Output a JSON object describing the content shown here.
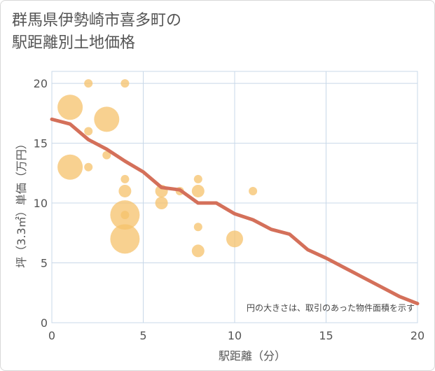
{
  "title": "群馬県伊勢崎市喜多町の\n駅距離別土地価格",
  "colors": {
    "bubble": "#f5c26b",
    "line": "#d4705a",
    "grid": "#c8d8e8",
    "axis_text": "#555555"
  },
  "chart_data": {
    "type": "scatter",
    "title": "群馬県伊勢崎市喜多町の駅距離別土地価格",
    "xlabel": "駅距離（分）",
    "ylabel": "坪（3.3㎡）単価（万円）",
    "xlim": [
      0,
      20
    ],
    "ylim": [
      0,
      21
    ],
    "xticks": [
      0,
      5,
      10,
      15,
      20
    ],
    "yticks": [
      0,
      5,
      10,
      15,
      20
    ],
    "note": "円の大きさは、取引のあった物件面積を示す",
    "points": [
      {
        "x": 1,
        "y": 18,
        "size": 3
      },
      {
        "x": 1,
        "y": 13,
        "size": 3
      },
      {
        "x": 2,
        "y": 20,
        "size": 1
      },
      {
        "x": 2,
        "y": 16,
        "size": 1
      },
      {
        "x": 2,
        "y": 13,
        "size": 1
      },
      {
        "x": 3,
        "y": 17,
        "size": 3
      },
      {
        "x": 3,
        "y": 14,
        "size": 1
      },
      {
        "x": 4,
        "y": 20,
        "size": 1
      },
      {
        "x": 4,
        "y": 12,
        "size": 1
      },
      {
        "x": 4,
        "y": 11,
        "size": 1.5
      },
      {
        "x": 4,
        "y": 9,
        "size": 3.5
      },
      {
        "x": 4,
        "y": 9,
        "size": 1
      },
      {
        "x": 4,
        "y": 7,
        "size": 3.5
      },
      {
        "x": 6,
        "y": 11,
        "size": 1.5
      },
      {
        "x": 6,
        "y": 10,
        "size": 1.5
      },
      {
        "x": 7,
        "y": 11,
        "size": 1
      },
      {
        "x": 8,
        "y": 12,
        "size": 1
      },
      {
        "x": 8,
        "y": 11,
        "size": 1.5
      },
      {
        "x": 8,
        "y": 8,
        "size": 1
      },
      {
        "x": 8,
        "y": 6,
        "size": 1.5
      },
      {
        "x": 10,
        "y": 7,
        "size": 2
      },
      {
        "x": 11,
        "y": 11,
        "size": 1
      }
    ],
    "trend_line": {
      "x": [
        0,
        1,
        2,
        3,
        4,
        5,
        6,
        7,
        8,
        9,
        10,
        11,
        12,
        13,
        14,
        15,
        16,
        17,
        18,
        19,
        20
      ],
      "y": [
        17,
        16.6,
        15.3,
        14.5,
        13.5,
        12.6,
        11.3,
        11.1,
        10,
        10,
        9.1,
        8.6,
        7.8,
        7.4,
        6.1,
        5.4,
        4.6,
        3.8,
        3.0,
        2.2,
        1.6
      ]
    }
  }
}
